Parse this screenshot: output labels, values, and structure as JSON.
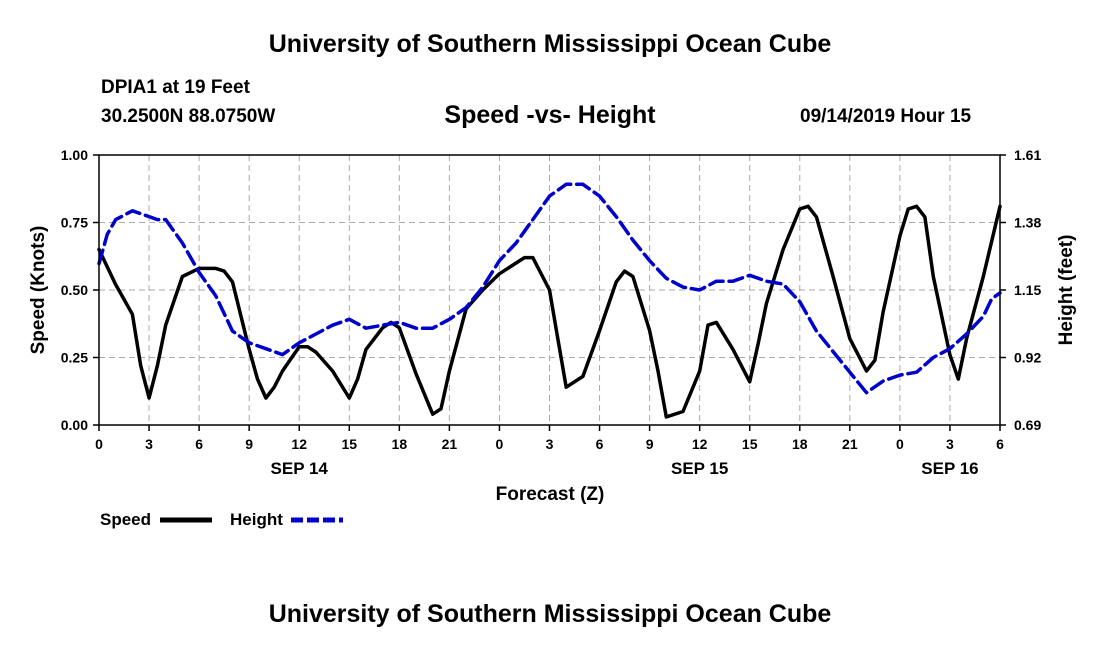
{
  "page": {
    "title_top": "University of Southern Mississippi Ocean Cube",
    "title_bottom": "University of Southern Mississippi Ocean Cube",
    "station": "DPIA1 at 19 Feet",
    "coords": "30.2500N 88.0750W",
    "plot_title": "Speed -vs- Height",
    "datetime": "09/14/2019 Hour 15"
  },
  "colors": {
    "speed": "#000000",
    "height": "#0000cc",
    "grid": "#aaaaaa"
  },
  "chart_data": {
    "type": "line",
    "title": "Speed -vs- Height",
    "xlabel": "Forecast (Z)",
    "ylabel": "Speed (Knots)",
    "y2label": "Height (feet)",
    "xlim": [
      0,
      54
    ],
    "ylim": [
      0,
      1.0
    ],
    "y2lim": [
      0.69,
      1.61
    ],
    "grid": true,
    "x_ticks": [
      {
        "x": 0,
        "label": "0"
      },
      {
        "x": 3,
        "label": "3"
      },
      {
        "x": 6,
        "label": "6"
      },
      {
        "x": 9,
        "label": "9"
      },
      {
        "x": 12,
        "label": "12"
      },
      {
        "x": 15,
        "label": "15"
      },
      {
        "x": 18,
        "label": "18"
      },
      {
        "x": 21,
        "label": "21"
      },
      {
        "x": 24,
        "label": "0"
      },
      {
        "x": 27,
        "label": "3"
      },
      {
        "x": 30,
        "label": "6"
      },
      {
        "x": 33,
        "label": "9"
      },
      {
        "x": 36,
        "label": "12"
      },
      {
        "x": 39,
        "label": "15"
      },
      {
        "x": 42,
        "label": "18"
      },
      {
        "x": 45,
        "label": "21"
      },
      {
        "x": 48,
        "label": "0"
      },
      {
        "x": 51,
        "label": "3"
      },
      {
        "x": 54,
        "label": "6"
      }
    ],
    "y_ticks": [
      {
        "v": 0.0,
        "label": "0.00"
      },
      {
        "v": 0.25,
        "label": "0.25"
      },
      {
        "v": 0.5,
        "label": "0.50"
      },
      {
        "v": 0.75,
        "label": "0.75"
      },
      {
        "v": 1.0,
        "label": "1.00"
      }
    ],
    "y2_ticks": [
      {
        "v": 0.69,
        "label": "0.69"
      },
      {
        "v": 0.92,
        "label": "0.92"
      },
      {
        "v": 1.15,
        "label": "1.15"
      },
      {
        "v": 1.38,
        "label": "1.38"
      },
      {
        "v": 1.61,
        "label": "1.61"
      }
    ],
    "day_labels": [
      {
        "x": 12,
        "label": "SEP 14"
      },
      {
        "x": 36,
        "label": "SEP 15"
      },
      {
        "x": 51,
        "label": "SEP 16"
      }
    ],
    "legend": [
      {
        "name": "Speed",
        "color": "#000000",
        "style": "solid"
      },
      {
        "name": "Height",
        "color": "#0000cc",
        "style": "dashed"
      }
    ],
    "series": [
      {
        "name": "Speed",
        "axis": "left",
        "color": "#000000",
        "style": "solid",
        "x": [
          0,
          1,
          2,
          2.5,
          3,
          3.5,
          4,
          5,
          6,
          7,
          7.5,
          8,
          9,
          9.5,
          10,
          10.5,
          11,
          12,
          12.5,
          13,
          14,
          15,
          15.5,
          16,
          17,
          17.5,
          18,
          19,
          20,
          20.5,
          21,
          22,
          23,
          24,
          25,
          25.5,
          26,
          27,
          27.5,
          28,
          29,
          30,
          31,
          31.5,
          32,
          33,
          33.5,
          34,
          35,
          36,
          36.5,
          37,
          38,
          39,
          39.5,
          40,
          41,
          42,
          42.5,
          43,
          44,
          45,
          46,
          46.5,
          47,
          48,
          48.5,
          49,
          49.5,
          50,
          51,
          51.5,
          52,
          53,
          54
        ],
        "values": [
          0.65,
          0.52,
          0.41,
          0.22,
          0.1,
          0.22,
          0.37,
          0.55,
          0.58,
          0.58,
          0.57,
          0.53,
          0.28,
          0.17,
          0.1,
          0.14,
          0.2,
          0.29,
          0.29,
          0.27,
          0.2,
          0.1,
          0.17,
          0.28,
          0.36,
          0.38,
          0.36,
          0.19,
          0.04,
          0.06,
          0.2,
          0.43,
          0.5,
          0.56,
          0.6,
          0.62,
          0.62,
          0.5,
          0.32,
          0.14,
          0.18,
          0.35,
          0.53,
          0.57,
          0.55,
          0.35,
          0.2,
          0.03,
          0.05,
          0.2,
          0.37,
          0.38,
          0.28,
          0.16,
          0.3,
          0.45,
          0.65,
          0.8,
          0.81,
          0.77,
          0.55,
          0.32,
          0.2,
          0.24,
          0.42,
          0.7,
          0.8,
          0.81,
          0.77,
          0.55,
          0.26,
          0.17,
          0.32,
          0.55,
          0.81
        ]
      },
      {
        "name": "Height",
        "axis": "right",
        "color": "#0000cc",
        "style": "dashed",
        "x": [
          0,
          0.5,
          1,
          2,
          3,
          3.5,
          4,
          5,
          6,
          7,
          8,
          9,
          10,
          11,
          12,
          13,
          14,
          15,
          16,
          17,
          18,
          19,
          20,
          21,
          22,
          23,
          24,
          25,
          26,
          27,
          28,
          29,
          30,
          31,
          32,
          33,
          34,
          35,
          36,
          37,
          38,
          39,
          40,
          41,
          42,
          43,
          44,
          45,
          46,
          47,
          48,
          49,
          50,
          51,
          52,
          53,
          53.5,
          54
        ],
        "values": [
          1.24,
          1.34,
          1.39,
          1.42,
          1.4,
          1.39,
          1.39,
          1.31,
          1.21,
          1.13,
          1.01,
          0.97,
          0.95,
          0.93,
          0.97,
          1.0,
          1.03,
          1.05,
          1.02,
          1.03,
          1.04,
          1.02,
          1.02,
          1.05,
          1.09,
          1.16,
          1.25,
          1.31,
          1.39,
          1.47,
          1.51,
          1.51,
          1.47,
          1.4,
          1.32,
          1.25,
          1.19,
          1.16,
          1.15,
          1.18,
          1.18,
          1.2,
          1.18,
          1.17,
          1.11,
          1.01,
          0.94,
          0.87,
          0.8,
          0.84,
          0.86,
          0.87,
          0.92,
          0.95,
          1.0,
          1.06,
          1.12,
          1.14
        ]
      }
    ]
  }
}
